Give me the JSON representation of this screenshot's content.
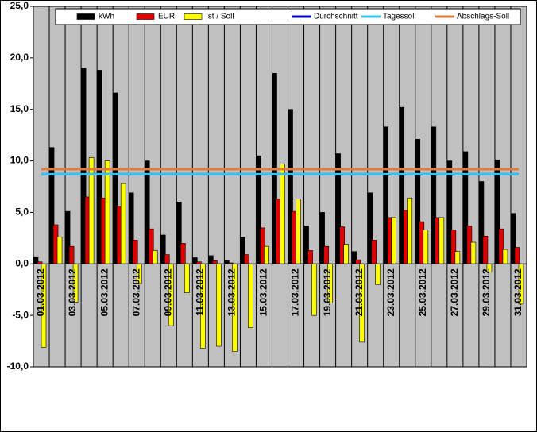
{
  "chart_data": {
    "type": "bar",
    "categories": [
      "01.03.2012",
      null,
      "03.03.2012",
      null,
      "05.03.2012",
      null,
      "07.03.2012",
      null,
      "09.03.2012",
      null,
      "11.03.2012",
      null,
      "13.03.2012",
      null,
      "15.03.2012",
      null,
      "17.03.2012",
      null,
      "19.03.2012",
      null,
      "21.03.2012",
      null,
      "23.03.2012",
      null,
      "25.03.2012",
      null,
      "27.03.2012",
      null,
      "29.03.2012",
      null,
      "31.03.2012"
    ],
    "series": [
      {
        "name": "kWh",
        "type": "bar",
        "color": "#000000",
        "values": [
          0.7,
          11.3,
          5.1,
          19.0,
          18.8,
          16.6,
          6.9,
          10.0,
          2.8,
          6.0,
          0.6,
          0.8,
          0.3,
          2.6,
          10.5,
          18.5,
          15.0,
          3.7,
          5.0,
          10.7,
          1.2,
          6.9,
          13.3,
          15.2,
          12.1,
          13.3,
          10.0,
          10.9,
          8.0,
          10.1,
          4.9
        ]
      },
      {
        "name": "EUR",
        "type": "bar",
        "color": "#e00000",
        "values": [
          0.2,
          3.8,
          1.7,
          6.5,
          6.4,
          5.6,
          2.3,
          3.4,
          0.9,
          2.0,
          0.2,
          0.3,
          0.1,
          0.9,
          3.5,
          6.3,
          5.1,
          1.3,
          1.7,
          3.6,
          0.4,
          2.3,
          4.5,
          5.2,
          4.1,
          4.5,
          3.3,
          3.7,
          2.7,
          3.4,
          1.6
        ]
      },
      {
        "name": "Ist / Soll",
        "type": "bar",
        "color": "#ffff00",
        "values": [
          -8.1,
          2.6,
          -3.7,
          10.3,
          10.0,
          7.8,
          -1.9,
          1.3,
          -6.0,
          -2.8,
          -8.2,
          -8.0,
          -8.5,
          -6.2,
          1.7,
          9.7,
          6.3,
          -5.0,
          -3.8,
          1.9,
          -7.6,
          -2.0,
          4.5,
          6.4,
          3.3,
          4.5,
          1.2,
          2.1,
          -0.8,
          1.4,
          -3.9
        ]
      },
      {
        "name": "Durchschnitt",
        "type": "line",
        "color": "#0000cc",
        "values": [
          8.7,
          8.7,
          8.7,
          8.7,
          8.7,
          8.7,
          8.7,
          8.7,
          8.7,
          8.7,
          8.7,
          8.7,
          8.7,
          8.7,
          8.7,
          8.7,
          8.7,
          8.7,
          8.7,
          8.7,
          8.7,
          8.7,
          8.7,
          8.7,
          8.7,
          8.7,
          8.7,
          8.7,
          8.7,
          8.7,
          8.7
        ]
      },
      {
        "name": "Tagessoll",
        "type": "line",
        "color": "#33c4ee",
        "values": [
          8.7,
          8.7,
          8.7,
          8.7,
          8.7,
          8.7,
          8.7,
          8.7,
          8.7,
          8.7,
          8.7,
          8.7,
          8.7,
          8.7,
          8.7,
          8.7,
          8.7,
          8.7,
          8.7,
          8.7,
          8.7,
          8.7,
          8.7,
          8.7,
          8.7,
          8.7,
          8.7,
          8.7,
          8.7,
          8.7,
          8.7
        ]
      },
      {
        "name": "Abschlags-Soll",
        "type": "line",
        "color": "#e07b39",
        "values": [
          9.2,
          9.2,
          9.2,
          9.2,
          9.2,
          9.2,
          9.2,
          9.2,
          9.2,
          9.2,
          9.2,
          9.2,
          9.2,
          9.2,
          9.2,
          9.2,
          9.2,
          9.2,
          9.2,
          9.2,
          9.2,
          9.2,
          9.2,
          9.2,
          9.2,
          9.2,
          9.2,
          9.2,
          9.2,
          9.2,
          9.2
        ]
      }
    ],
    "ylim": [
      -10,
      25
    ],
    "yticks": [
      {
        "value": -10,
        "label": "-10,0"
      },
      {
        "value": -5,
        "label": "-5,0"
      },
      {
        "value": 0,
        "label": "0,0"
      },
      {
        "value": 5,
        "label": "5,0"
      },
      {
        "value": 10,
        "label": "10,0"
      },
      {
        "value": 15,
        "label": "15,0"
      },
      {
        "value": 20,
        "label": "20,0"
      },
      {
        "value": 25,
        "label": "25,0"
      }
    ],
    "grid": false,
    "legend": "top"
  }
}
